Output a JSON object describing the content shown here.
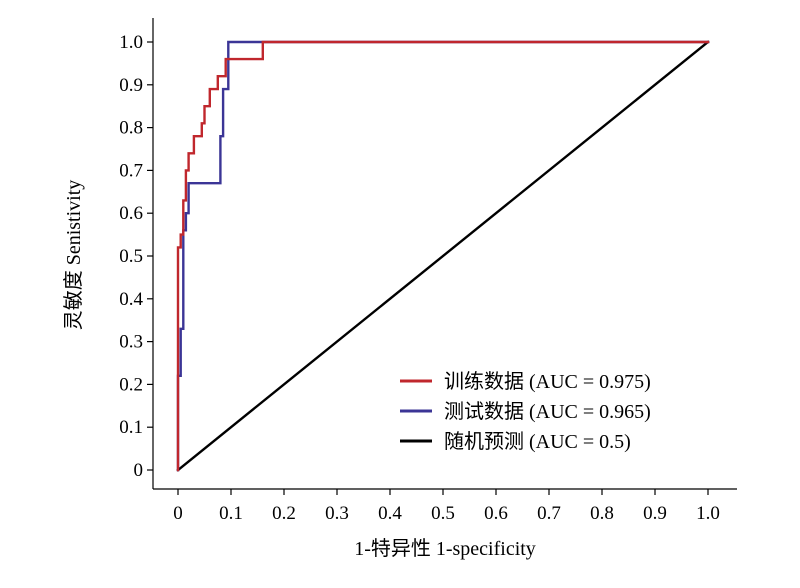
{
  "chart_data": {
    "type": "line",
    "xlabel": "1-特异性 1-specificity",
    "ylabel": "灵敏度 Senistivity",
    "xlim": [
      0,
      1.0
    ],
    "ylim": [
      0,
      1.0
    ],
    "x_ticks": [
      "0",
      "0.1",
      "0.2",
      "0.3",
      "0.4",
      "0.5",
      "0.6",
      "0.7",
      "0.8",
      "0.9",
      "1.0"
    ],
    "y_ticks": [
      "0",
      "0.1",
      "0.2",
      "0.3",
      "0.4",
      "0.5",
      "0.6",
      "0.7",
      "0.8",
      "0.9",
      "1.0"
    ],
    "grid": false,
    "legend_position": "bottom-right",
    "series": [
      {
        "name": "训练数据 (AUC = 0.975)",
        "color": "#c0272d",
        "x": [
          0.0,
          0.0,
          0.005,
          0.005,
          0.01,
          0.01,
          0.015,
          0.015,
          0.02,
          0.02,
          0.03,
          0.03,
          0.045,
          0.045,
          0.05,
          0.05,
          0.06,
          0.06,
          0.075,
          0.075,
          0.09,
          0.09,
          0.16,
          0.16,
          1.0
        ],
        "y": [
          0.0,
          0.52,
          0.52,
          0.55,
          0.55,
          0.63,
          0.63,
          0.7,
          0.7,
          0.74,
          0.74,
          0.78,
          0.78,
          0.81,
          0.81,
          0.85,
          0.85,
          0.89,
          0.89,
          0.92,
          0.92,
          0.96,
          0.96,
          1.0,
          1.0
        ]
      },
      {
        "name": "测试数据 (AUC = 0.965)",
        "color": "#3b3596",
        "x": [
          0.0,
          0.0,
          0.005,
          0.005,
          0.01,
          0.01,
          0.015,
          0.015,
          0.02,
          0.02,
          0.08,
          0.08,
          0.085,
          0.085,
          0.095,
          0.095,
          1.0
        ],
        "y": [
          0.0,
          0.22,
          0.22,
          0.33,
          0.33,
          0.56,
          0.56,
          0.6,
          0.6,
          0.67,
          0.67,
          0.78,
          0.78,
          0.89,
          0.89,
          1.0,
          1.0
        ]
      },
      {
        "name": "随机预测 (AUC = 0.5)",
        "color": "#000000",
        "x": [
          0.0,
          1.0
        ],
        "y": [
          0.0,
          1.0
        ]
      }
    ]
  }
}
